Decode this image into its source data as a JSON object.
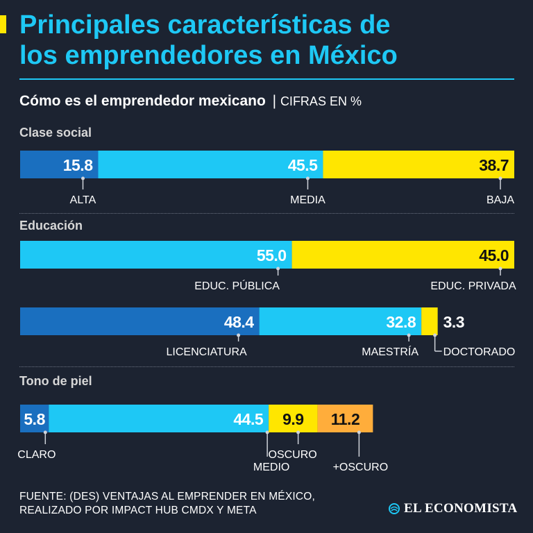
{
  "header": {
    "title_line1": "Principales características de",
    "title_line2": "los emprendedores en México",
    "subtitle": "Cómo es el emprendedor mexicano",
    "subtitle_sep": "|",
    "units": "CIFRAS EN %"
  },
  "colors": {
    "background": "#1c2331",
    "dark_blue": "#1a6fbf",
    "light_blue": "#1ec8f5",
    "yellow": "#ffe600",
    "orange": "#ffad3b",
    "label_line": "#cfd3da"
  },
  "chart_data": [
    {
      "type": "bar",
      "subtype": "stacked-100",
      "section": "Clase social",
      "categories": [
        "ALTA",
        "MEDIA",
        "BAJA"
      ],
      "values": [
        15.8,
        45.5,
        38.7
      ],
      "value_labels": [
        "15.8",
        "45.5",
        "38.7"
      ],
      "colors": [
        "dark_blue",
        "light_blue",
        "yellow"
      ]
    },
    {
      "type": "bar",
      "subtype": "stacked-100",
      "section": "Educación",
      "categories": [
        "EDUC. PÚBLICA",
        "EDUC. PRIVADA"
      ],
      "values": [
        55.0,
        45.0
      ],
      "value_labels": [
        "55.0",
        "45.0"
      ],
      "colors": [
        "light_blue",
        "yellow"
      ]
    },
    {
      "type": "bar",
      "subtype": "stacked-100",
      "section": "",
      "categories": [
        "LICENCIATURA",
        "MAESTRÍA",
        "DOCTORADO"
      ],
      "values": [
        48.4,
        32.8,
        3.3
      ],
      "value_labels": [
        "48.4",
        "32.8",
        "3.3"
      ],
      "colors": [
        "dark_blue",
        "light_blue",
        "yellow"
      ]
    },
    {
      "type": "bar",
      "subtype": "stacked-100",
      "section": "Tono de piel",
      "categories": [
        "CLARO",
        "MEDIO",
        "OSCURO",
        "+OSCURO"
      ],
      "values": [
        5.8,
        44.5,
        9.9,
        11.2
      ],
      "value_labels": [
        "5.8",
        "44.5",
        "9.9",
        "11.2"
      ],
      "colors": [
        "dark_blue",
        "light_blue",
        "yellow",
        "orange"
      ]
    }
  ],
  "footer": {
    "source_line1": "FUENTE: (DES) VENTAJAS AL EMPRENDER EN MÉXICO,",
    "source_line2": "REALIZADO POR IMPACT HUB CMDX Y META",
    "brand": "EL ECONOMISTA",
    "brand_icon": "globe-icon"
  }
}
